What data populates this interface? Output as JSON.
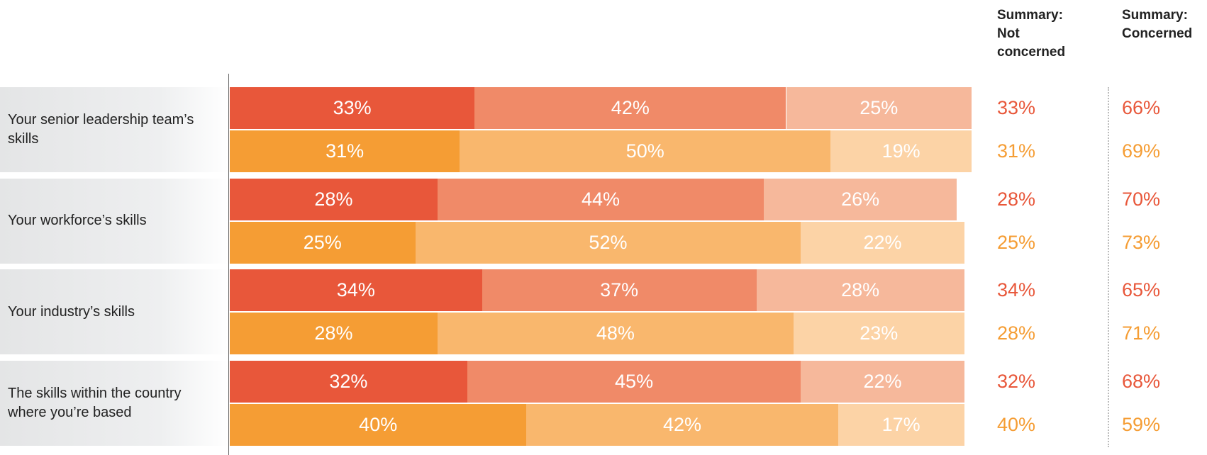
{
  "chart_data": {
    "type": "stacked-bar",
    "orientation": "horizontal",
    "xlim": [
      0,
      100
    ],
    "categories": [
      "Your senior leadership team’s skills",
      "Your workforce’s skills",
      "Your industry’s skills",
      "The skills within the country where you’re based"
    ],
    "stacks": [
      {
        "series": [
          {
            "color": "#e8573a",
            "values": [
              33,
              28,
              34,
              32
            ],
            "value_labels": [
              "33%",
              "28%",
              "34%",
              "32%"
            ]
          },
          {
            "color": "#f08a68",
            "values": [
              42,
              44,
              37,
              45
            ],
            "value_labels": [
              "42%",
              "44%",
              "37%",
              "45%"
            ]
          },
          {
            "color": "#f6b89b",
            "values": [
              25,
              26,
              28,
              22
            ],
            "value_labels": [
              "25%",
              "26%",
              "28%",
              "22%"
            ]
          }
        ]
      },
      {
        "series": [
          {
            "color": "#f59d34",
            "values": [
              31,
              25,
              28,
              40
            ],
            "value_labels": [
              "31%",
              "25%",
              "28%",
              "40%"
            ]
          },
          {
            "color": "#f9b76d",
            "values": [
              50,
              52,
              48,
              42
            ],
            "value_labels": [
              "50%",
              "52%",
              "48%",
              "42%"
            ]
          },
          {
            "color": "#fcd3a6",
            "values": [
              19,
              22,
              23,
              17
            ],
            "value_labels": [
              "19%",
              "22%",
              "23%",
              "17%"
            ]
          }
        ]
      }
    ],
    "summary": [
      {
        "title": "Summary: Not concerned",
        "stacks": [
          {
            "values": [
              33,
              28,
              34,
              32
            ],
            "value_labels": [
              "33%",
              "28%",
              "34%",
              "32%"
            ]
          },
          {
            "values": [
              31,
              25,
              28,
              40
            ],
            "value_labels": [
              "31%",
              "25%",
              "28%",
              "40%"
            ]
          }
        ]
      },
      {
        "title": "Summary: Concerned",
        "stacks": [
          {
            "values": [
              66,
              70,
              65,
              68
            ],
            "value_labels": [
              "66%",
              "70%",
              "65%",
              "68%"
            ]
          },
          {
            "values": [
              69,
              73,
              71,
              59
            ],
            "value_labels": [
              "69%",
              "73%",
              "71%",
              "59%"
            ]
          }
        ]
      }
    ]
  }
}
